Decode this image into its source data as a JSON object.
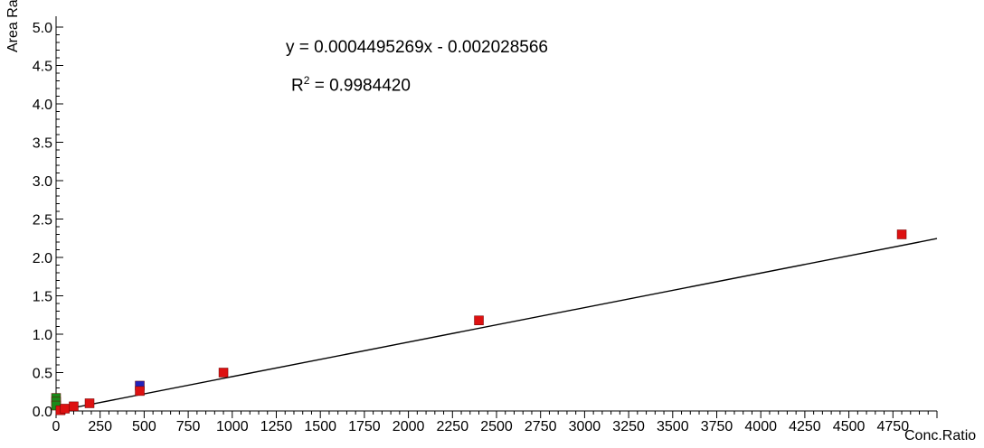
{
  "chart_data": {
    "type": "scatter",
    "equation": "y = 0.0004495269x - 0.002028566",
    "r_squared_prefix": "R",
    "r_squared_exp": "2",
    "r_squared_rest": " = 0.9984420",
    "xlabel": "Conc.Ratio",
    "ylabel": "Area Ratio",
    "xlim": [
      0,
      5000
    ],
    "ylim": [
      0,
      5.0
    ],
    "x_ticks": [
      "0",
      "250",
      "500",
      "750",
      "1000",
      "1250",
      "1500",
      "1750",
      "2000",
      "2250",
      "2500",
      "2750",
      "3000",
      "3250",
      "3500",
      "3750",
      "4000",
      "4250",
      "4500",
      "4750"
    ],
    "y_ticks": [
      "0.0",
      "0.5",
      "1.0",
      "1.5",
      "2.0",
      "2.5",
      "3.0",
      "3.5",
      "4.0",
      "4.5",
      "5.0"
    ],
    "grid": false,
    "trendline": {
      "slope": 0.0004495269,
      "intercept": -0.002028566,
      "x_range": [
        0,
        5000
      ]
    },
    "series": [
      {
        "color": "#2222bb",
        "points": [
          [
            475,
            0.33
          ]
        ]
      },
      {
        "color": "#1a8a1a",
        "points": [
          [
            0,
            0.17
          ],
          [
            0,
            0.12
          ],
          [
            0,
            0.07
          ]
        ]
      },
      {
        "color": "#dd1111",
        "points": [
          [
            25,
            0.01
          ],
          [
            50,
            0.03
          ],
          [
            100,
            0.06
          ],
          [
            190,
            0.1
          ],
          [
            475,
            0.26
          ],
          [
            950,
            0.5
          ],
          [
            2400,
            1.18
          ],
          [
            4800,
            2.3
          ]
        ]
      }
    ]
  }
}
